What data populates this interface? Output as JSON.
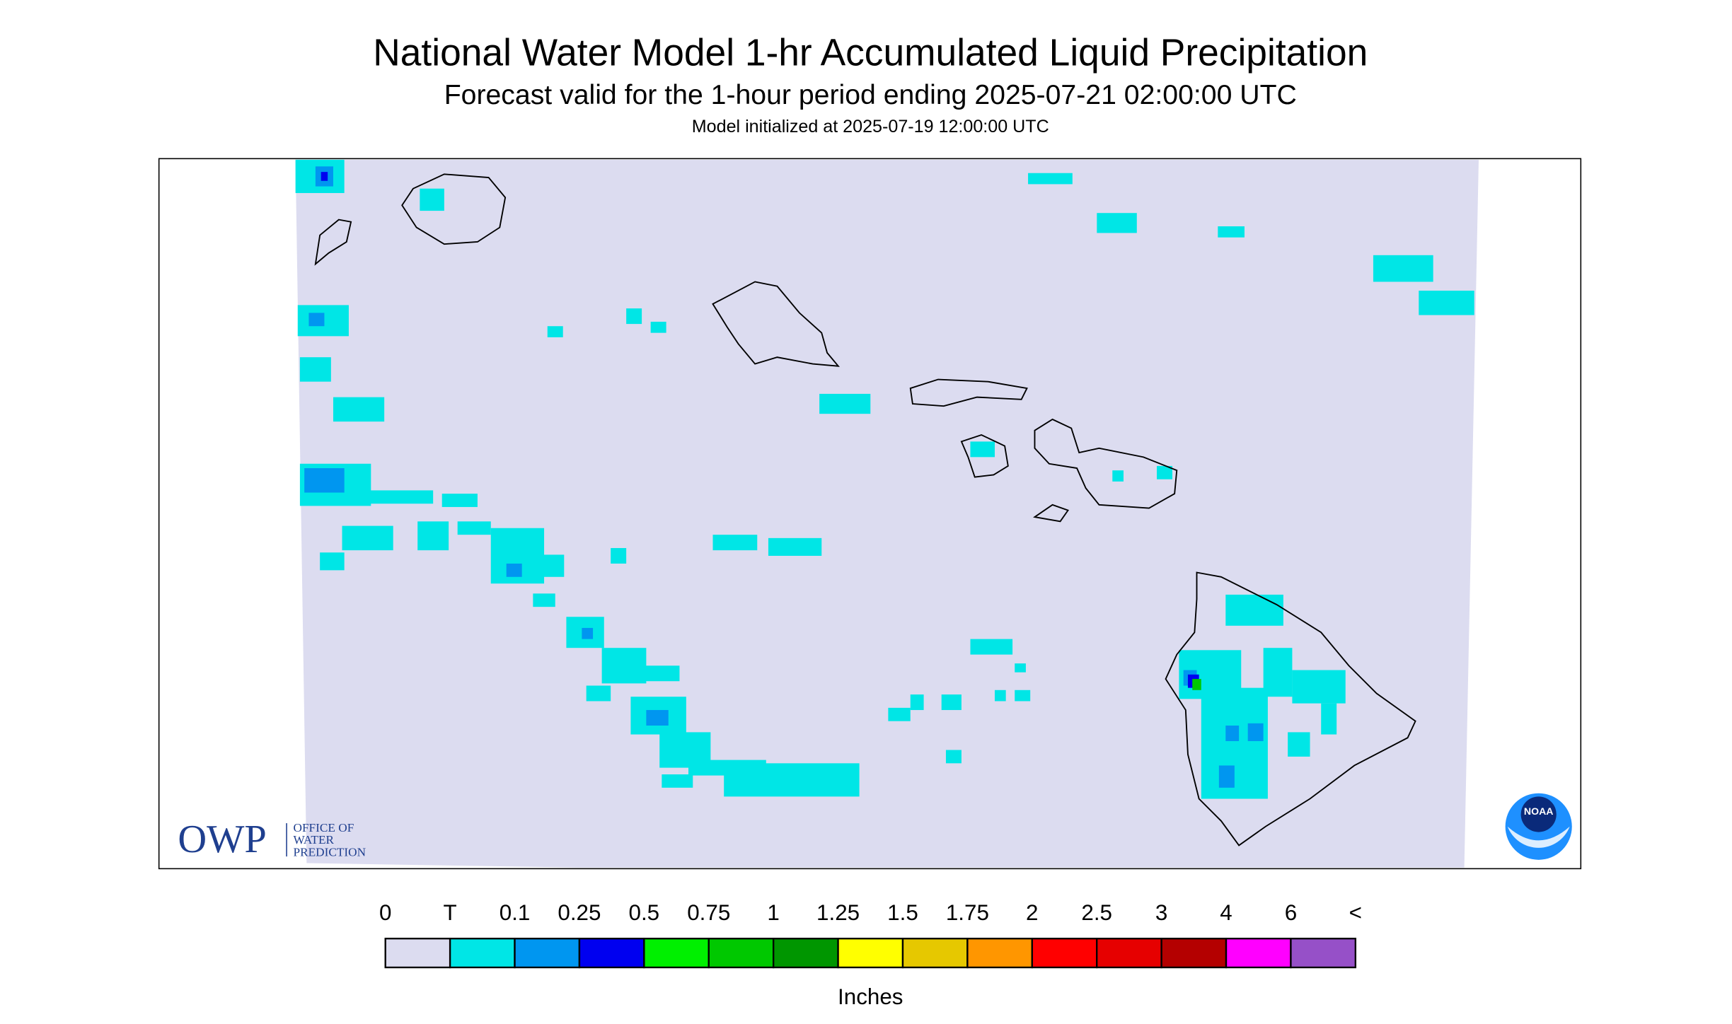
{
  "header": {
    "title": "National Water Model 1-hr Accumulated Liquid Precipitation",
    "subtitle": "Forecast valid for the 1-hour period ending 2025-07-21 02:00:00 UTC",
    "init": "Model initialized at 2025-07-19 12:00:00 UTC"
  },
  "logos": {
    "owp": "OWP",
    "owp_lines": [
      "OFFICE OF",
      "WATER",
      "PREDICTION"
    ],
    "noaa": "NOAA"
  },
  "legend": {
    "labels": [
      "0",
      "T",
      "0.1",
      "0.25",
      "0.5",
      "0.75",
      "1",
      "1.25",
      "1.5",
      "1.75",
      "2",
      "2.5",
      "3",
      "4",
      "6",
      "<"
    ],
    "colors": [
      "#dcdcf0",
      "#00e6e6",
      "#0096f0",
      "#0000f0",
      "#00f000",
      "#00c800",
      "#009600",
      "#ffff00",
      "#e6c800",
      "#ff9600",
      "#ff0000",
      "#e60000",
      "#b40000",
      "#ff00ff",
      "#9650c8"
    ],
    "unit": "Inches"
  }
}
